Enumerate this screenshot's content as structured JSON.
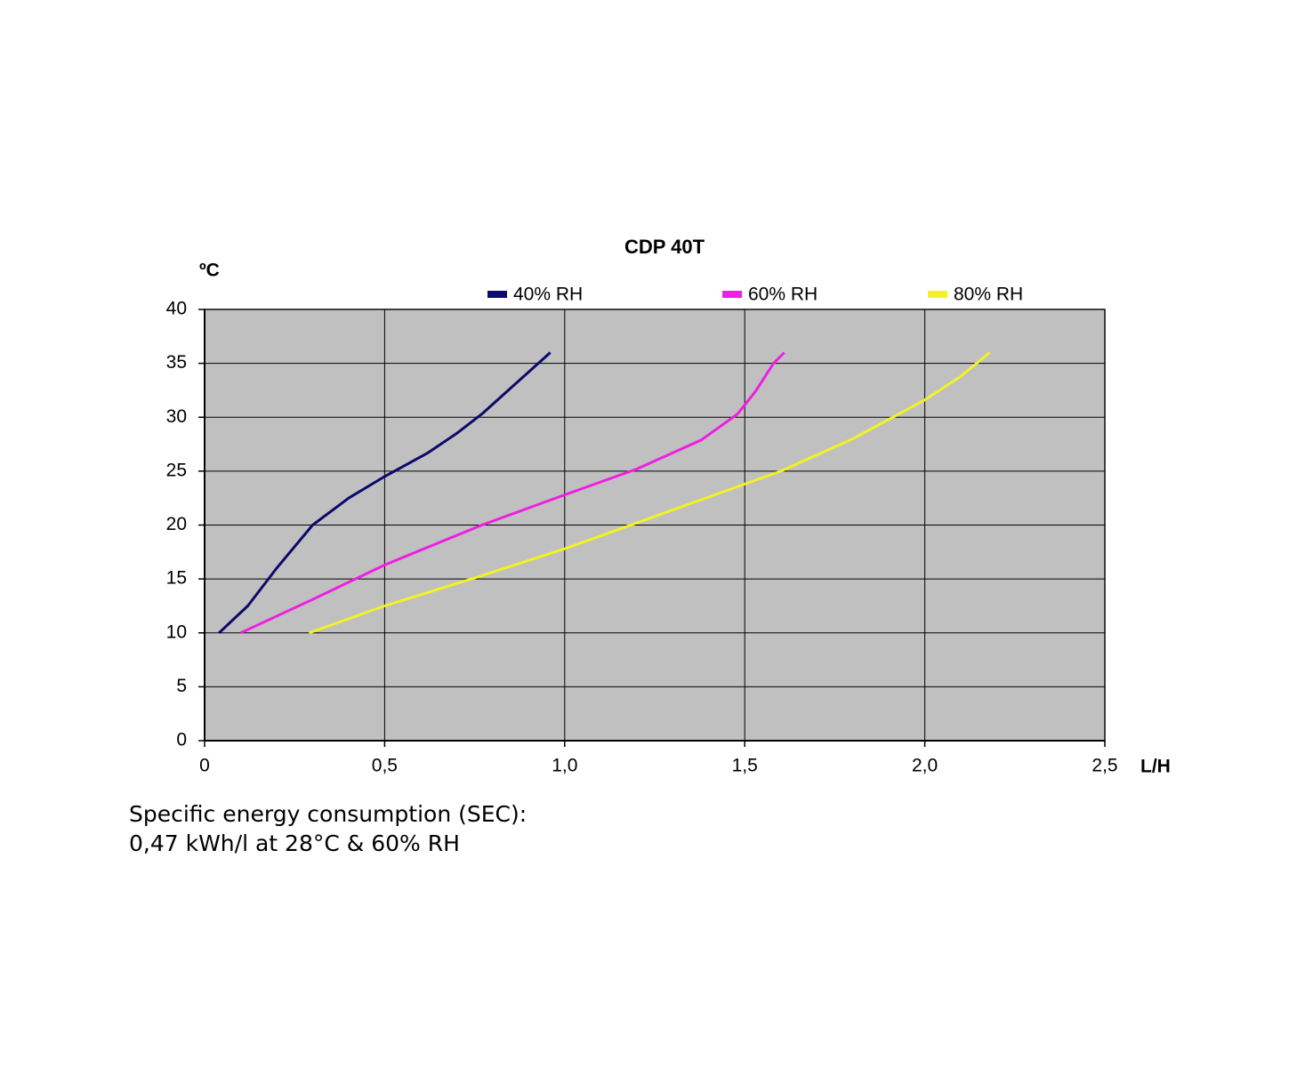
{
  "chart_data": {
    "type": "line",
    "title": "CDP 40T",
    "y_label": "ºC",
    "x_label": "L/H",
    "annotations": [
      "Specific energy consumption (SEC):",
      "0,47 kWh/l at 28°C & 60% RH"
    ],
    "series": [
      {
        "name": "40% RH",
        "color": "#0a0a6b",
        "x": [
          0.04,
          0.12,
          0.2,
          0.3,
          0.4,
          0.5,
          0.62,
          0.7,
          0.77,
          0.86,
          0.96
        ],
        "values": [
          10,
          12.5,
          16,
          20,
          22.5,
          24.5,
          26.7,
          28.5,
          30.3,
          33,
          36
        ]
      },
      {
        "name": "60% RH",
        "color": "#ee1fe0",
        "x": [
          0.1,
          0.3,
          0.5,
          0.77,
          1.0,
          1.2,
          1.38,
          1.48,
          1.53,
          1.58,
          1.61
        ],
        "values": [
          10,
          13.1,
          16.3,
          20,
          22.8,
          25.2,
          27.9,
          30.3,
          32.4,
          35,
          36
        ]
      },
      {
        "name": "80% RH",
        "color": "#f2f224",
        "x": [
          0.29,
          0.5,
          0.75,
          1.0,
          1.25,
          1.5,
          1.6,
          1.8,
          1.9,
          2.0,
          2.1,
          2.18
        ],
        "values": [
          10,
          12.5,
          15.1,
          17.8,
          20.8,
          23.8,
          25,
          28,
          29.8,
          31.6,
          33.8,
          36
        ]
      }
    ],
    "xlim": [
      0,
      2.5
    ],
    "xticks": [
      0,
      {
        "value": 0.5,
        "label": "0,5"
      },
      {
        "value": 1.0,
        "label": "1,0"
      },
      {
        "value": 1.5,
        "label": "1,5"
      },
      {
        "value": 2.0,
        "label": "2,0"
      },
      {
        "value": 2.5,
        "label": "2,5"
      }
    ],
    "ylim": [
      0,
      40
    ],
    "yticks": [
      0,
      5,
      10,
      15,
      20,
      25,
      30,
      35,
      40
    ],
    "grid": true,
    "legend": "top",
    "plot_background": "#c0c0c0"
  }
}
